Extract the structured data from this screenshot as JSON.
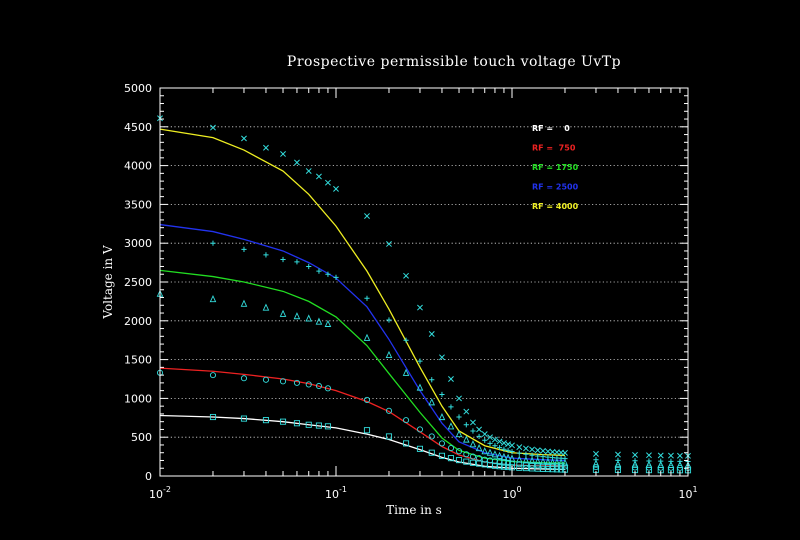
{
  "chart_data": {
    "type": "line",
    "title": "Prospective permissible touch voltage UvTp",
    "xlabel": "Time in s",
    "ylabel": "Voltage in V",
    "xscale": "log",
    "xlim": [
      0.01,
      10
    ],
    "ylim": [
      0,
      5000
    ],
    "yticks": [
      0,
      500,
      1000,
      1500,
      2000,
      2500,
      3000,
      3500,
      4000,
      4500,
      5000
    ],
    "xtick_labels": [
      {
        "value": 0.01,
        "base": "10",
        "exp": "-2"
      },
      {
        "value": 0.1,
        "base": "10",
        "exp": "-1"
      },
      {
        "value": 1,
        "base": "10",
        "exp": "0"
      },
      {
        "value": 10,
        "base": "10",
        "exp": "1"
      }
    ],
    "grid": "horizontal dotted",
    "legend_position": "upper-right",
    "marker_color": "#33dddd",
    "series": [
      {
        "name": "RF =    0",
        "color": "#ffffff",
        "marker": "square",
        "line": {
          "x": [
            0.01,
            0.02,
            0.03,
            0.05,
            0.07,
            0.1,
            0.15,
            0.2,
            0.3,
            0.4,
            0.5,
            0.7,
            1,
            1.5,
            2
          ],
          "y": [
            780,
            760,
            740,
            700,
            660,
            620,
            540,
            470,
            340,
            240,
            180,
            125,
            100,
            90,
            85
          ]
        },
        "points": {
          "x": [
            0.02,
            0.03,
            0.04,
            0.05,
            0.06,
            0.07,
            0.08,
            0.09,
            0.15,
            0.2,
            0.25,
            0.3,
            0.35,
            0.4,
            0.45,
            0.5,
            0.55,
            0.6,
            0.65,
            0.7,
            0.75,
            0.8,
            0.85,
            0.9,
            0.95,
            1,
            1.1,
            1.2,
            1.3,
            1.4,
            1.5,
            1.6,
            1.7,
            1.8,
            1.9,
            2,
            3,
            4,
            5,
            6,
            7,
            8,
            9,
            10
          ],
          "y": [
            760,
            740,
            720,
            700,
            680,
            660,
            650,
            640,
            590,
            510,
            420,
            350,
            300,
            260,
            230,
            205,
            185,
            170,
            160,
            150,
            140,
            132,
            126,
            120,
            116,
            112,
            106,
            102,
            98,
            95,
            92,
            90,
            88,
            86,
            84,
            82,
            80,
            78,
            77,
            76,
            75,
            75,
            74,
            74
          ]
        }
      },
      {
        "name": "RF =  750",
        "color": "#ee2222",
        "marker": "circle",
        "line": {
          "x": [
            0.01,
            0.02,
            0.03,
            0.05,
            0.07,
            0.1,
            0.15,
            0.2,
            0.3,
            0.4,
            0.5,
            0.7,
            1,
            1.5,
            2
          ],
          "y": [
            1390,
            1350,
            1310,
            1250,
            1190,
            1100,
            960,
            830,
            570,
            380,
            270,
            180,
            140,
            130,
            125
          ]
        },
        "points": {
          "x": [
            0.01,
            0.02,
            0.03,
            0.04,
            0.05,
            0.06,
            0.07,
            0.08,
            0.09,
            0.15,
            0.2,
            0.25,
            0.3,
            0.35,
            0.4,
            0.45,
            0.5,
            0.55,
            0.6,
            0.65,
            0.7,
            0.75,
            0.8,
            0.85,
            0.9,
            0.95,
            1,
            1.1,
            1.2,
            1.3,
            1.4,
            1.5,
            1.6,
            1.7,
            1.8,
            1.9,
            2,
            3,
            4,
            5,
            6,
            7,
            8,
            9,
            10
          ],
          "y": [
            1330,
            1300,
            1260,
            1240,
            1220,
            1200,
            1180,
            1160,
            1130,
            980,
            840,
            720,
            600,
            510,
            420,
            360,
            320,
            280,
            250,
            230,
            210,
            200,
            190,
            180,
            172,
            165,
            160,
            152,
            146,
            141,
            137,
            133,
            130,
            127,
            125,
            123,
            121,
            115,
            112,
            110,
            108,
            107,
            106,
            105,
            104
          ]
        }
      },
      {
        "name": "RF = 1750",
        "color": "#22dd22",
        "marker": "triangle",
        "line": {
          "x": [
            0.01,
            0.02,
            0.03,
            0.05,
            0.07,
            0.1,
            0.15,
            0.2,
            0.3,
            0.4,
            0.5,
            0.7,
            1,
            1.5,
            2
          ],
          "y": [
            2650,
            2570,
            2500,
            2380,
            2250,
            2050,
            1680,
            1320,
            820,
            490,
            330,
            230,
            185,
            170,
            165
          ]
        },
        "points": {
          "x": [
            0.01,
            0.02,
            0.03,
            0.04,
            0.05,
            0.06,
            0.07,
            0.08,
            0.09,
            0.15,
            0.2,
            0.25,
            0.3,
            0.35,
            0.4,
            0.45,
            0.5,
            0.55,
            0.6,
            0.65,
            0.7,
            0.75,
            0.8,
            0.85,
            0.9,
            0.95,
            1,
            1.1,
            1.2,
            1.3,
            1.4,
            1.5,
            1.6,
            1.7,
            1.8,
            1.9,
            2,
            3,
            4,
            5,
            6,
            7,
            8,
            9,
            10
          ],
          "y": [
            2350,
            2280,
            2220,
            2170,
            2090,
            2060,
            2030,
            1990,
            1960,
            1780,
            1560,
            1330,
            1140,
            950,
            760,
            640,
            540,
            470,
            410,
            360,
            320,
            300,
            280,
            260,
            245,
            235,
            225,
            212,
            202,
            195,
            189,
            184,
            180,
            177,
            174,
            171,
            169,
            160,
            154,
            150,
            147,
            145,
            143,
            142,
            141
          ]
        }
      },
      {
        "name": "RF = 2500",
        "color": "#2233ee",
        "marker": "plus",
        "line": {
          "x": [
            0.01,
            0.02,
            0.03,
            0.05,
            0.07,
            0.1,
            0.15,
            0.2,
            0.3,
            0.4,
            0.5,
            0.7,
            1,
            1.5,
            2
          ],
          "y": [
            3240,
            3150,
            3050,
            2900,
            2750,
            2550,
            2180,
            1760,
            1100,
            680,
            440,
            300,
            230,
            210,
            200
          ]
        },
        "points": {
          "x": [
            0.02,
            0.03,
            0.04,
            0.05,
            0.06,
            0.07,
            0.08,
            0.09,
            0.1,
            0.15,
            0.2,
            0.25,
            0.3,
            0.35,
            0.4,
            0.45,
            0.5,
            0.55,
            0.6,
            0.65,
            0.7,
            0.75,
            0.8,
            0.85,
            0.9,
            0.95,
            1,
            1.1,
            1.2,
            1.3,
            1.4,
            1.5,
            1.6,
            1.7,
            1.8,
            1.9,
            2,
            3,
            4,
            5,
            6,
            7,
            8,
            9,
            10
          ],
          "y": [
            3000,
            2920,
            2850,
            2790,
            2760,
            2700,
            2640,
            2600,
            2560,
            2290,
            2010,
            1750,
            1480,
            1240,
            1050,
            890,
            760,
            660,
            580,
            510,
            460,
            420,
            390,
            365,
            345,
            330,
            315,
            295,
            280,
            268,
            258,
            250,
            243,
            237,
            232,
            228,
            224,
            210,
            202,
            197,
            194,
            191,
            189,
            188,
            187
          ]
        }
      },
      {
        "name": "RF = 4000",
        "color": "#eeee22",
        "marker": "x",
        "line": {
          "x": [
            0.01,
            0.02,
            0.03,
            0.05,
            0.07,
            0.1,
            0.15,
            0.2,
            0.3,
            0.4,
            0.5,
            0.7,
            1,
            1.5,
            2
          ],
          "y": [
            4470,
            4360,
            4200,
            3930,
            3630,
            3220,
            2640,
            2150,
            1400,
            900,
            580,
            390,
            300,
            275,
            265
          ]
        },
        "points": {
          "x": [
            0.01,
            0.02,
            0.03,
            0.04,
            0.05,
            0.06,
            0.07,
            0.08,
            0.09,
            0.1,
            0.15,
            0.2,
            0.25,
            0.3,
            0.35,
            0.4,
            0.45,
            0.5,
            0.55,
            0.6,
            0.65,
            0.7,
            0.75,
            0.8,
            0.85,
            0.9,
            0.95,
            1,
            1.1,
            1.2,
            1.3,
            1.4,
            1.5,
            1.6,
            1.7,
            1.8,
            1.9,
            2,
            3,
            4,
            5,
            6,
            7,
            8,
            9,
            10
          ],
          "y": [
            4610,
            4490,
            4350,
            4230,
            4150,
            4040,
            3930,
            3860,
            3780,
            3700,
            3350,
            2990,
            2580,
            2170,
            1830,
            1530,
            1250,
            1000,
            830,
            690,
            600,
            540,
            500,
            470,
            445,
            425,
            410,
            395,
            372,
            355,
            342,
            332,
            324,
            317,
            311,
            306,
            302,
            298,
            285,
            277,
            272,
            268,
            265,
            263,
            261,
            260
          ]
        }
      }
    ]
  }
}
